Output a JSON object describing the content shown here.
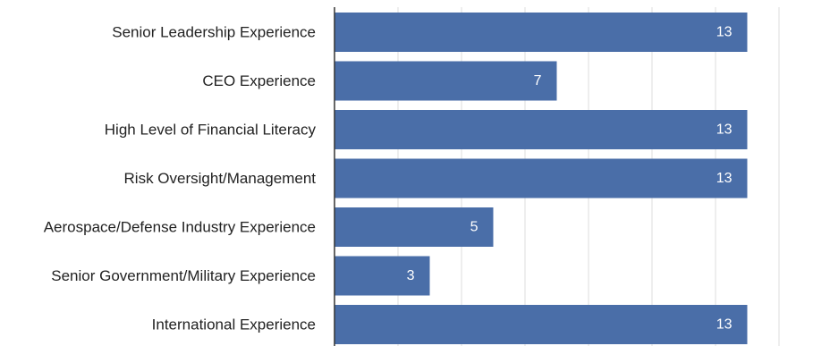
{
  "chart_data": {
    "type": "bar",
    "orientation": "horizontal",
    "title": "",
    "xlabel": "",
    "ylabel": "",
    "categories": [
      "Senior Leadership Experience",
      "CEO Experience",
      "High Level of Financial Literacy",
      "Risk Oversight/Management",
      "Aerospace/Defense Industry Experience",
      "Senior Government/Military Experience",
      "International Experience"
    ],
    "values": [
      13,
      7,
      13,
      13,
      5,
      3,
      13
    ],
    "data_labels": [
      "13",
      "7",
      "13",
      "13",
      "5",
      "3",
      "13"
    ],
    "xlim": [
      0,
      14
    ],
    "grid": true,
    "bar_color": "#4a6ea8",
    "grid_color": "#dcdcdc",
    "label_color": "#222222",
    "value_label_color": "#ffffff"
  }
}
